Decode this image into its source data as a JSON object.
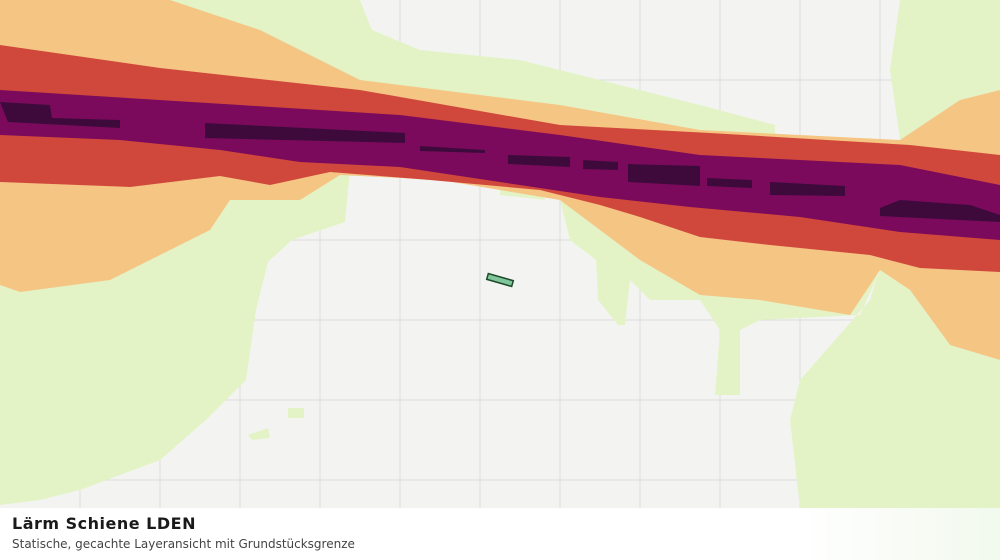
{
  "legend_caption": {
    "title": "Lärm Schiene LDEN",
    "subtitle": "Statische, gecachte Layeransicht mit Grundstücksgrenze"
  }
}
